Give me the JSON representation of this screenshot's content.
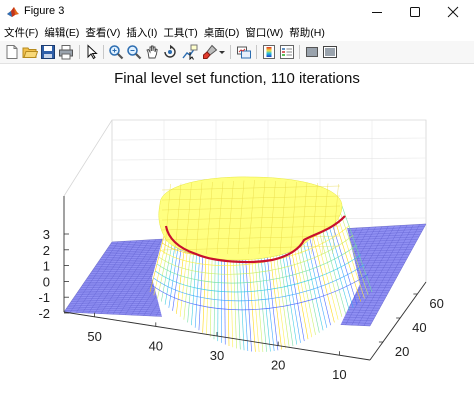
{
  "window": {
    "title": "Figure 3",
    "controls": [
      "minimize",
      "maximize",
      "close"
    ]
  },
  "menu": [
    {
      "label": "文件(F)"
    },
    {
      "label": "编辑(E)"
    },
    {
      "label": "查看(V)"
    },
    {
      "label": "插入(I)"
    },
    {
      "label": "工具(T)"
    },
    {
      "label": "桌面(D)"
    },
    {
      "label": "窗口(W)"
    },
    {
      "label": "帮助(H)"
    }
  ],
  "toolbar": {
    "icons": [
      "new-figure-icon",
      "open-file-icon",
      "save-icon",
      "print-icon",
      "pointer-icon",
      "zoom-in-icon",
      "zoom-out-icon",
      "pan-icon",
      "rotate-3d-icon",
      "data-cursor-icon",
      "brush-icon",
      "brush-dropdown-icon",
      "link-plot-icon",
      "colorbar-icon",
      "legend-icon",
      "hide-plot-tools-icon",
      "show-plot-tools-icon"
    ]
  },
  "chart_data": {
    "type": "surface",
    "title": "Final level set function, 110 iterations",
    "z_ticks": [
      3,
      2,
      1,
      0,
      -1,
      -2
    ],
    "x_ticks": [
      50,
      40,
      30,
      20,
      10
    ],
    "y_ticks": [
      20,
      40,
      60
    ],
    "zero_contour_color": "#c8102e",
    "surface_colormap": "jet",
    "flat_level_color": "#8f8ff2",
    "plateau_color": "#ffff80",
    "grid": true
  }
}
